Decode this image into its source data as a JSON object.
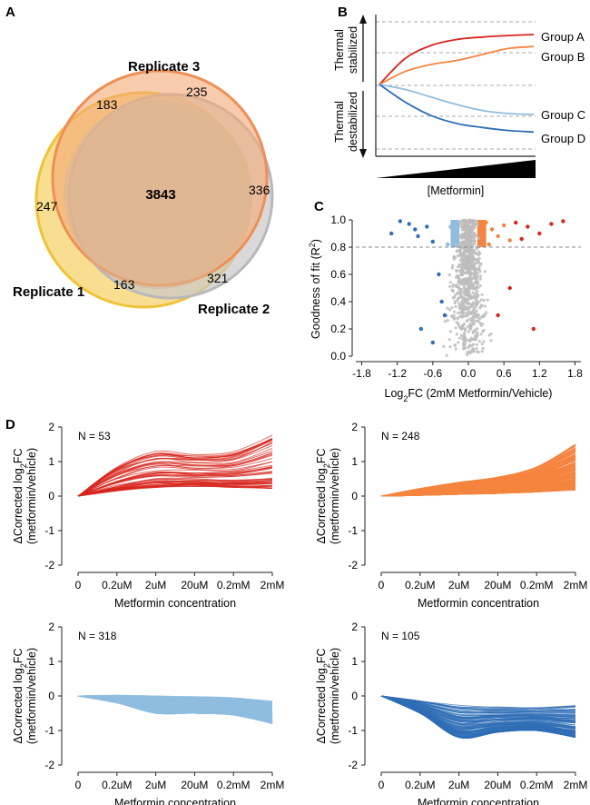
{
  "panel_labels": {
    "a": "A",
    "b": "B",
    "c": "C",
    "d": "D"
  },
  "venn": {
    "sets": [
      "Replicate 1",
      "Replicate 2",
      "Replicate 3"
    ],
    "counts": {
      "all_three": "3843",
      "r1_r3": "183",
      "r3_only": "235",
      "r1_only": "247",
      "r2_r3": "336",
      "r1_r2": "163",
      "r2_only": "321"
    },
    "colors": {
      "r1": "#f4c430",
      "r2": "#b8b8b8",
      "r3": "#f08a4b",
      "overlap": "#dcb494"
    }
  },
  "schematic": {
    "ylabel_up_1": "Thermal",
    "ylabel_up_2": "stabilized",
    "ylabel_down_1": "Thermal",
    "ylabel_down_2": "destabilized",
    "xlabel": "[Metformin]",
    "groups": [
      {
        "name": "Group A",
        "color": "#d7261e",
        "shape": [
          0.52,
          0.78,
          0.9,
          0.95,
          0.98,
          1.0
        ]
      },
      {
        "name": "Group B",
        "color": "#f4843f",
        "shape": [
          0.26,
          0.4,
          0.48,
          0.6,
          0.72,
          0.76
        ]
      },
      {
        "name": "Group C",
        "color": "#8fbde0",
        "shape": [
          -0.1,
          -0.25,
          -0.4,
          -0.52,
          -0.58,
          -0.6
        ]
      },
      {
        "name": "Group D",
        "color": "#2f6db5",
        "shape": [
          -0.35,
          -0.62,
          -0.78,
          -0.86,
          -0.92,
          -0.95
        ]
      }
    ]
  },
  "chart_data": [
    {
      "panel": "C",
      "type": "scatter",
      "xlabel": "Log2FC (2mM Metformin/Vehicle)",
      "ylabel": "Goodness of fit (R2)",
      "xlim": [
        -1.9,
        1.9
      ],
      "ylim": [
        0,
        1
      ],
      "xticks": [
        "-1.8",
        "-1.2",
        "-0.6",
        "0.0",
        "0.6",
        "1.2",
        "1.8"
      ],
      "yticks": [
        "0.0",
        "0.2",
        "0.4",
        "0.6",
        "0.8",
        "1.0"
      ],
      "r2_threshold": 0.8,
      "series": [
        {
          "name": "Group D",
          "color": "#2f6db5",
          "points": [
            [
              -1.15,
              0.99
            ],
            [
              -1.0,
              0.97
            ],
            [
              -0.9,
              0.93
            ],
            [
              -0.85,
              0.88
            ],
            [
              -0.7,
              0.95
            ],
            [
              -0.6,
              0.84
            ],
            [
              -1.3,
              0.9
            ],
            [
              -0.5,
              0.6
            ],
            [
              -0.45,
              0.4
            ],
            [
              -0.8,
              0.2
            ],
            [
              -0.6,
              0.1
            ],
            [
              -0.4,
              0.3
            ]
          ]
        },
        {
          "name": "Group C",
          "color": "#8fbde0",
          "points": [
            [
              -0.3,
              0.95
            ],
            [
              -0.25,
              0.9
            ],
            [
              -0.2,
              0.86
            ],
            [
              -0.35,
              0.82
            ]
          ]
        },
        {
          "name": "Group B",
          "color": "#f4843f",
          "points": [
            [
              0.3,
              0.98
            ],
            [
              0.4,
              0.93
            ],
            [
              0.5,
              0.88
            ],
            [
              0.6,
              0.96
            ],
            [
              0.7,
              0.85
            ],
            [
              0.35,
              0.82
            ]
          ]
        },
        {
          "name": "Group A",
          "color": "#d7261e",
          "points": [
            [
              0.8,
              0.98
            ],
            [
              1.0,
              0.95
            ],
            [
              1.2,
              0.9
            ],
            [
              1.4,
              0.97
            ],
            [
              1.6,
              0.99
            ],
            [
              0.9,
              0.86
            ],
            [
              0.7,
              0.5
            ],
            [
              0.5,
              0.3
            ],
            [
              1.1,
              0.2
            ]
          ]
        }
      ]
    },
    {
      "panel": "D",
      "type": "line",
      "title": "N = 53",
      "group": "Group A",
      "color": "#d7261e",
      "n_lines": 53,
      "categories": [
        "0",
        "0.2uM",
        "2uM",
        "20uM",
        "0.2mM",
        "2mM"
      ],
      "xlabel": "Metformin concentration",
      "ylabel": "ΔCorrected log2FC (metformin/vehicle)",
      "ylim": [
        -2,
        2
      ],
      "envelope_min": [
        0,
        0.15,
        0.25,
        0.28,
        0.25,
        0.22
      ],
      "envelope_max": [
        0,
        0.85,
        1.3,
        1.2,
        1.3,
        1.8
      ]
    },
    {
      "panel": "D",
      "type": "line",
      "title": "N = 248",
      "group": "Group B",
      "color": "#f4843f",
      "n_lines": 248,
      "categories": [
        "0",
        "0.2uM",
        "2uM",
        "20uM",
        "0.2mM",
        "2mM"
      ],
      "xlabel": "Metformin concentration",
      "ylabel": "ΔCorrected log2FC (metformin/vehicle)",
      "ylim": [
        -2,
        2
      ],
      "envelope_min": [
        0,
        0.02,
        0.05,
        0.08,
        0.12,
        0.18
      ],
      "envelope_max": [
        0,
        0.22,
        0.4,
        0.55,
        0.85,
        1.5
      ]
    },
    {
      "panel": "D",
      "type": "line",
      "title": "N = 318",
      "group": "Group C",
      "color": "#8fbde0",
      "n_lines": 318,
      "categories": [
        "0",
        "0.2uM",
        "2uM",
        "20uM",
        "0.2mM",
        "2mM"
      ],
      "xlabel": "Metformin concentration",
      "ylabel": "ΔCorrected log2FC (metformin/vehicle)",
      "ylim": [
        -2,
        2
      ],
      "envelope_min": [
        0,
        -0.2,
        -0.5,
        -0.5,
        -0.55,
        -0.8
      ],
      "envelope_max": [
        0,
        0.02,
        0,
        -0.02,
        -0.05,
        -0.15
      ]
    },
    {
      "panel": "D",
      "type": "line",
      "title": "N = 105",
      "group": "Group D",
      "color": "#2f6db5",
      "n_lines": 105,
      "categories": [
        "0",
        "0.2uM",
        "2uM",
        "20uM",
        "0.2mM",
        "2mM"
      ],
      "xlabel": "Metformin concentration",
      "ylabel": "ΔCorrected log2FC (metformin/vehicle)",
      "ylim": [
        -2,
        2
      ],
      "envelope_min": [
        0,
        -0.5,
        -1.2,
        -1.05,
        -1.0,
        -1.2
      ],
      "envelope_max": [
        0,
        -0.12,
        -0.25,
        -0.3,
        -0.3,
        -0.25
      ]
    }
  ]
}
